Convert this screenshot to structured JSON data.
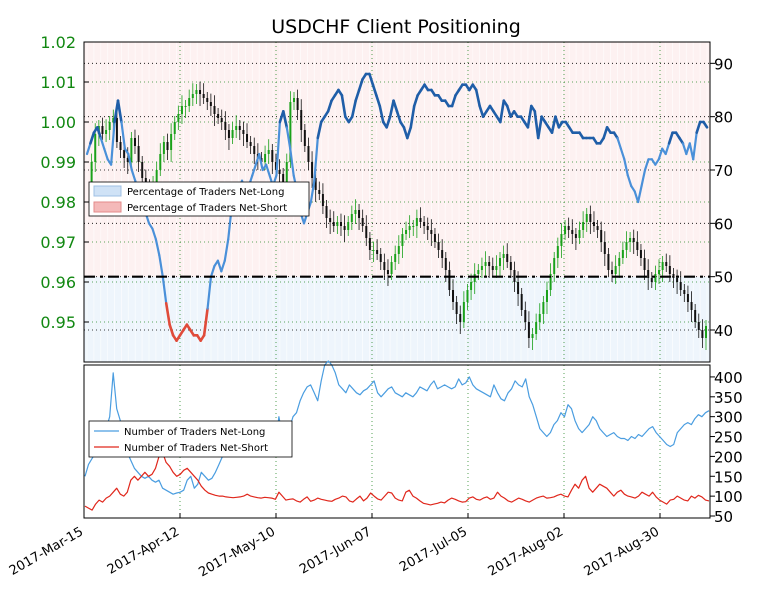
{
  "chart_data": {
    "title": "USDCHF Client Positioning",
    "top_panel": {
      "type": "candlestick",
      "price_axis": {
        "side": "left",
        "ylim": [
          0.94,
          1.02
        ],
        "ticks": [
          0.95,
          0.96,
          0.97,
          0.98,
          0.99,
          1.0,
          1.01,
          1.02
        ],
        "tick_labels": [
          "0.95",
          "0.96",
          "0.97",
          "0.98",
          "0.99",
          "1.00",
          "1.01",
          "1.02"
        ],
        "tick_color": "#118811"
      },
      "percent_axis": {
        "side": "right",
        "ylim": [
          34,
          94
        ],
        "ticks": [
          40,
          50,
          60,
          70,
          80,
          90
        ],
        "tick_labels": [
          "40",
          "50",
          "60",
          "70",
          "80",
          "90"
        ],
        "reference_line": 50
      },
      "candles_close_approx": [
        0.983,
        0.99,
        0.997,
        0.999,
        0.997,
        0.998,
        1.0,
        1.001,
        0.995,
        0.993,
        0.991,
        0.99,
        0.996,
        0.994,
        0.99,
        0.986,
        0.983,
        0.98,
        0.985,
        0.988,
        0.992,
        0.995,
        0.993,
        0.997,
        1.0,
        1.002,
        1.004,
        1.004,
        1.006,
        1.007,
        1.008,
        1.007,
        1.006,
        1.005,
        1.004,
        1.002,
        1.001,
        1.0,
        0.998,
        0.996,
        0.998,
        0.999,
        0.998,
        0.997,
        0.995,
        0.994,
        0.992,
        0.991,
        0.99,
        0.992,
        0.993,
        0.99,
        0.988,
        0.987,
        0.985,
        0.99,
        1.005,
        1.006,
        1.003,
        0.998,
        0.994,
        0.99,
        0.986,
        0.983,
        0.982,
        0.979,
        0.976,
        0.975,
        0.974,
        0.975,
        0.974,
        0.973,
        0.975,
        0.977,
        0.978,
        0.976,
        0.974,
        0.971,
        0.968,
        0.968,
        0.967,
        0.965,
        0.963,
        0.962,
        0.965,
        0.967,
        0.969,
        0.972,
        0.973,
        0.974,
        0.974,
        0.976,
        0.975,
        0.974,
        0.973,
        0.972,
        0.97,
        0.968,
        0.966,
        0.963,
        0.958,
        0.955,
        0.952,
        0.95,
        0.955,
        0.958,
        0.96,
        0.962,
        0.963,
        0.964,
        0.965,
        0.964,
        0.963,
        0.964,
        0.966,
        0.967,
        0.965,
        0.963,
        0.96,
        0.957,
        0.953,
        0.95,
        0.946,
        0.947,
        0.95,
        0.952,
        0.955,
        0.958,
        0.962,
        0.966,
        0.969,
        0.972,
        0.974,
        0.973,
        0.972,
        0.971,
        0.973,
        0.975,
        0.977,
        0.975,
        0.974,
        0.973,
        0.97,
        0.967,
        0.963,
        0.962,
        0.964,
        0.966,
        0.968,
        0.97,
        0.971,
        0.97,
        0.968,
        0.966,
        0.963,
        0.961,
        0.96,
        0.962,
        0.963,
        0.965,
        0.964,
        0.962,
        0.961,
        0.96,
        0.958,
        0.957,
        0.955,
        0.953,
        0.95,
        0.948,
        0.946,
        0.949
      ],
      "pct_net_long": [
        73,
        75,
        77,
        78,
        76,
        74,
        72,
        71,
        79,
        83,
        79,
        74,
        73,
        70,
        68,
        66,
        64,
        62,
        60,
        59,
        57,
        54,
        50,
        45,
        41,
        39,
        38,
        39,
        40,
        41,
        40,
        39,
        39,
        38,
        39,
        44,
        50,
        52,
        53,
        51,
        53,
        57,
        63,
        64,
        66,
        68,
        66,
        67,
        69,
        71,
        73,
        70,
        71,
        69,
        67,
        69,
        79,
        81,
        78,
        74,
        69,
        66,
        62,
        60,
        62,
        64,
        68,
        76,
        79,
        80,
        81,
        83,
        84,
        85,
        84,
        80,
        79,
        80,
        83,
        85,
        87,
        88,
        88,
        86,
        84,
        82,
        79,
        78,
        80,
        83,
        81,
        79,
        78,
        76,
        78,
        82,
        84,
        85,
        86,
        85,
        85,
        84,
        84,
        83,
        83,
        82,
        82,
        84,
        85,
        86,
        86,
        85,
        86,
        85,
        82,
        80,
        81,
        82,
        81,
        80,
        79,
        83,
        82,
        80,
        81,
        80,
        80,
        79,
        78,
        82,
        81,
        76,
        80,
        79,
        78,
        77,
        80,
        78,
        79,
        79,
        78,
        77,
        77,
        77,
        76,
        76,
        76,
        76,
        75,
        75,
        76,
        78,
        77,
        77,
        76,
        74,
        72,
        69,
        67,
        66,
        64,
        67,
        70,
        72,
        72,
        71,
        72,
        74,
        73,
        75,
        77,
        77,
        76,
        75,
        73,
        75,
        72,
        77,
        79,
        79,
        78
      ],
      "legend": [
        {
          "label": "Percentage of Traders Net-Long",
          "color": "#cfe2f6",
          "edge": "#9fc0e4"
        },
        {
          "label": "Percentage of Traders Net-Short",
          "color": "#f4b9b9",
          "edge": "#e38a8a"
        }
      ],
      "line_colors": {
        "net_long": "#4a90d9",
        "net_short": "#e04b3a",
        "dark_blue": "#1f5ea8",
        "up_candle": "#1aa11a",
        "down_candle": "#111111"
      }
    },
    "bottom_panel": {
      "type": "line",
      "yaxis": {
        "side": "right",
        "ylim": [
          45,
          430
        ],
        "ticks": [
          50,
          100,
          150,
          200,
          250,
          300,
          350,
          400
        ],
        "tick_labels": [
          "50",
          "100",
          "150",
          "200",
          "250",
          "300",
          "350",
          "400"
        ]
      },
      "series": [
        {
          "name": "Number of Traders Net-Long",
          "color": "#4a9de0",
          "values": [
            150,
            180,
            195,
            210,
            240,
            255,
            270,
            300,
            410,
            320,
            290,
            270,
            210,
            190,
            170,
            160,
            150,
            145,
            150,
            140,
            135,
            140,
            120,
            115,
            110,
            105,
            108,
            110,
            115,
            140,
            150,
            120,
            130,
            160,
            150,
            140,
            145,
            160,
            180,
            200,
            220,
            235,
            250,
            260,
            250,
            270,
            285,
            270,
            255,
            240,
            250,
            270,
            235,
            240,
            230,
            300,
            250,
            260,
            270,
            300,
            310,
            340,
            360,
            375,
            380,
            360,
            340,
            390,
            430,
            440,
            430,
            410,
            380,
            370,
            360,
            380,
            370,
            360,
            355,
            365,
            370,
            380,
            390,
            360,
            350,
            360,
            370,
            375,
            360,
            355,
            350,
            360,
            355,
            350,
            360,
            375,
            370,
            365,
            380,
            390,
            370,
            375,
            380,
            375,
            370,
            375,
            395,
            380,
            385,
            400,
            380,
            370,
            365,
            360,
            355,
            350,
            380,
            360,
            345,
            340,
            360,
            370,
            390,
            380,
            375,
            395,
            350,
            330,
            300,
            270,
            260,
            250,
            260,
            280,
            290,
            310,
            300,
            330,
            320,
            290,
            270,
            260,
            270,
            280,
            300,
            290,
            270,
            260,
            250,
            255,
            260,
            250,
            245,
            245,
            240,
            250,
            245,
            255,
            250,
            260,
            270,
            275,
            260,
            250,
            240,
            230,
            225,
            230,
            260,
            270,
            280,
            285,
            280,
            295,
            305,
            300,
            310,
            315
          ]
        },
        {
          "name": "Number of Traders Net-Short",
          "color": "#e0271c",
          "values": [
            75,
            70,
            65,
            80,
            90,
            85,
            95,
            100,
            110,
            120,
            105,
            100,
            110,
            140,
            150,
            140,
            150,
            160,
            150,
            155,
            170,
            200,
            210,
            185,
            175,
            160,
            150,
            155,
            165,
            170,
            160,
            150,
            140,
            125,
            115,
            108,
            105,
            102,
            100,
            100,
            98,
            97,
            96,
            97,
            98,
            100,
            105,
            100,
            98,
            96,
            95,
            97,
            96,
            95,
            92,
            110,
            100,
            90,
            92,
            93,
            88,
            85,
            92,
            98,
            87,
            90,
            95,
            92,
            90,
            88,
            87,
            92,
            95,
            100,
            98,
            88,
            85,
            93,
            100,
            88,
            95,
            108,
            100,
            93,
            90,
            100,
            110,
            108,
            95,
            90,
            88,
            110,
            115,
            100,
            95,
            88,
            82,
            80,
            78,
            80,
            82,
            85,
            83,
            90,
            95,
            92,
            88,
            85,
            86,
            95,
            98,
            92,
            90,
            95,
            98,
            92,
            95,
            110,
            100,
            95,
            88,
            85,
            90,
            95,
            92,
            88,
            85,
            90,
            95,
            98,
            100,
            95,
            96,
            98,
            102,
            105,
            100,
            98,
            115,
            130,
            120,
            140,
            150,
            120,
            110,
            120,
            130,
            125,
            120,
            110,
            100,
            110,
            115,
            105,
            100,
            98,
            95,
            100,
            110,
            105,
            100,
            110,
            98,
            90,
            85,
            80,
            90,
            92,
            100,
            95,
            90,
            88,
            100,
            95,
            102,
            98,
            90,
            88
          ]
        }
      ],
      "legend_placement": "upper-left"
    },
    "x_axis": {
      "tick_labels": [
        "2017-Mar-15",
        "2017-Apr-12",
        "2017-May-10",
        "2017-Jun-07",
        "2017-Jul-05",
        "2017-Aug-02",
        "2017-Aug-30"
      ]
    }
  }
}
